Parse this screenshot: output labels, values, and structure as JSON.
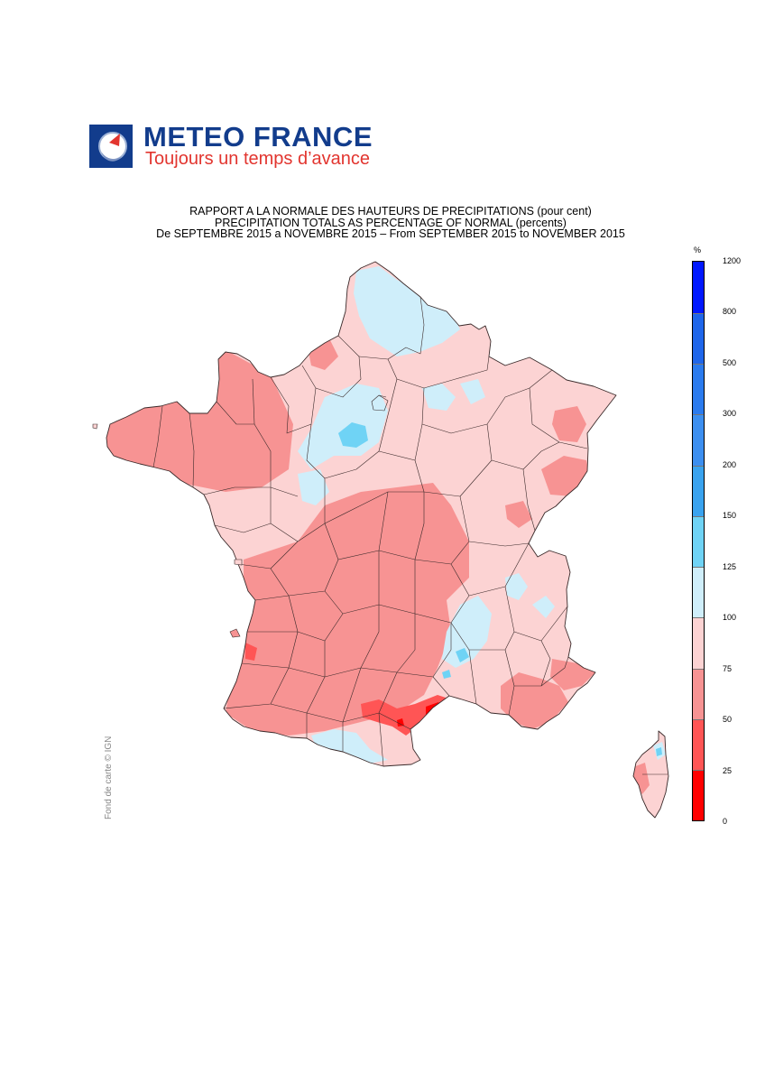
{
  "header": {
    "brand_name": "METEO FRANCE",
    "brand_tagline": "Toujours un temps d’avance"
  },
  "titles": {
    "line1": "RAPPORT A LA NORMALE DES HAUTEURS DE PRECIPITATIONS (pour cent)",
    "line2": "PRECIPITATION TOTALS AS PERCENTAGE OF NORMAL (percents)",
    "line3": "De SEPTEMBRE 2015 a NOVEMBRE 2015 – From SEPTEMBER 2015 to NOVEMBER 2015"
  },
  "credit": "Fond de carte © IGN",
  "legend": {
    "unit": "%",
    "bins": [
      {
        "from": 0,
        "to": 25,
        "color": "#ff0000"
      },
      {
        "from": 25,
        "to": 50,
        "color": "#ff5555"
      },
      {
        "from": 50,
        "to": 75,
        "color": "#f79393"
      },
      {
        "from": 75,
        "to": 100,
        "color": "#fcd3d3"
      },
      {
        "from": 100,
        "to": 125,
        "color": "#cfeefa"
      },
      {
        "from": 125,
        "to": 150,
        "color": "#6fd3f5"
      },
      {
        "from": 150,
        "to": 200,
        "color": "#3aa3ef"
      },
      {
        "from": 200,
        "to": 300,
        "color": "#3c8ff0"
      },
      {
        "from": 300,
        "to": 500,
        "color": "#2b7bee"
      },
      {
        "from": 500,
        "to": 800,
        "color": "#1f66ea"
      },
      {
        "from": 800,
        "to": 1200,
        "color": "#0018ff"
      }
    ],
    "labels": [
      "0",
      "25",
      "50",
      "75",
      "100",
      "125",
      "150",
      "200",
      "300",
      "500",
      "800",
      "1200"
    ]
  },
  "map_colors": {
    "light_pink": "#fcd3d3",
    "pink": "#f79393",
    "red": "#ff5555",
    "deep_red": "#ff0000",
    "light_blue": "#cfeefa",
    "cyan": "#6fd3f5",
    "border": "#3a2a2a"
  }
}
